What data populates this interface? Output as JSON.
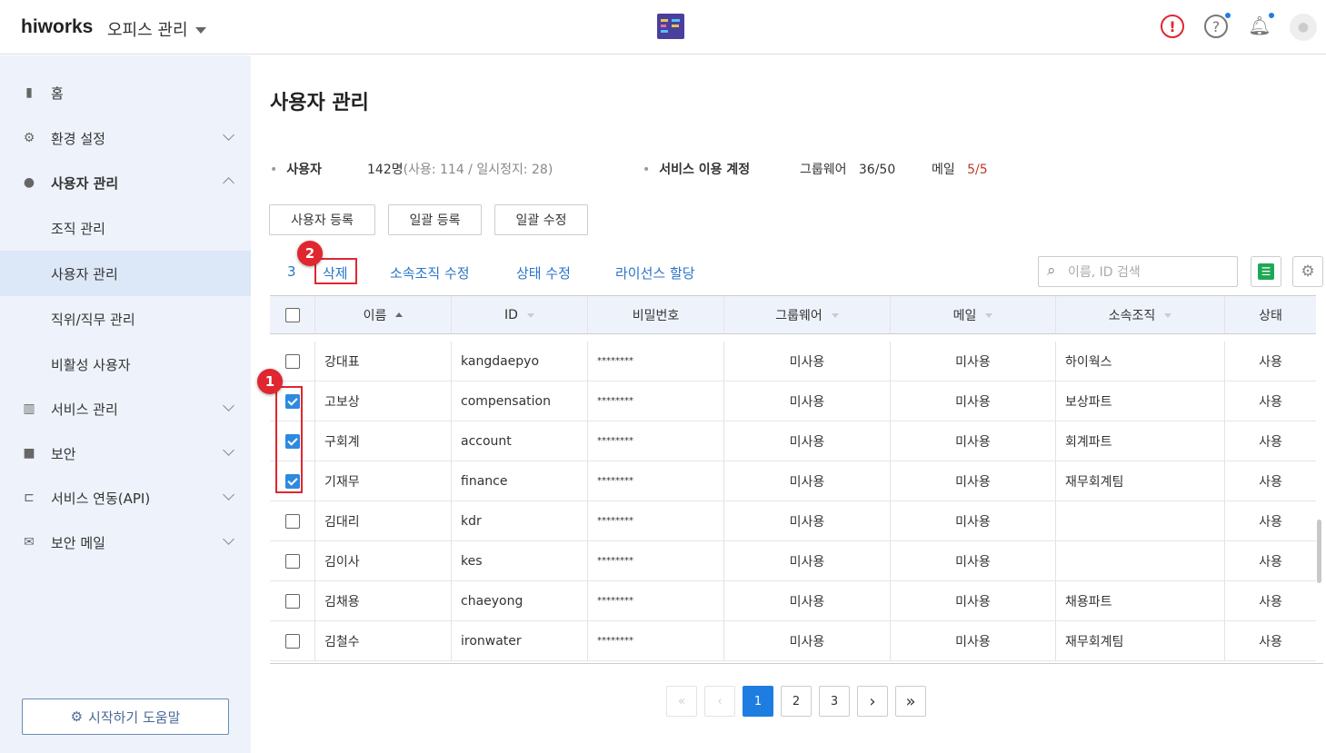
{
  "header": {
    "logo": "hiworks",
    "office_label": "오피스 관리",
    "icons": [
      "alert-icon",
      "help-icon",
      "bell-icon",
      "avatar"
    ],
    "accent": "#1e7de0"
  },
  "sidebar": {
    "items": [
      {
        "label": "홈",
        "icon": "building-icon"
      },
      {
        "label": "환경 설정",
        "icon": "gear-icon"
      },
      {
        "label": "사용자 관리",
        "icon": "user-icon"
      },
      {
        "label": "조직 관리"
      },
      {
        "label": "사용자 관리",
        "active": true
      },
      {
        "label": "직위/직무 관리"
      },
      {
        "label": "비활성 사용자"
      },
      {
        "label": "서비스 관리",
        "icon": "chart-icon"
      },
      {
        "label": "보안",
        "icon": "lock-icon"
      },
      {
        "label": "서비스 연동(API)",
        "icon": "api-icon"
      },
      {
        "label": "보안 메일",
        "icon": "mail-icon"
      }
    ],
    "help_button": "시작하기 도움말"
  },
  "main": {
    "title": "사용자 관리",
    "stats": {
      "users_label": "사용자",
      "users_total": "142명",
      "users_detail": "(사용: 114 / 일시정지: 28)",
      "service_label": "서비스 이용 계정",
      "groupware_label": "그룹웨어",
      "groupware_value": "36/50",
      "mail_label": "메일",
      "mail_value": "5/5"
    },
    "buttons": {
      "register": "사용자 등록",
      "bulk_register": "일괄 등록",
      "bulk_edit": "일괄 수정"
    },
    "actions": {
      "selected_count": "3",
      "delete": "삭제",
      "edit_org": "소속조직 수정",
      "edit_status": "상태 수정",
      "assign_license": "라이선스 할당"
    },
    "search_placeholder": "이름, ID 검색",
    "annotations": {
      "one": "1",
      "two": "2"
    },
    "columns": [
      "이름",
      "ID",
      "비밀번호",
      "그룹웨어",
      "메일",
      "소속조직",
      "상태"
    ],
    "rows": [
      {
        "checked": false,
        "name": "강대표",
        "id": "kangdaepyo",
        "pw": "********",
        "gw": "미사용",
        "mail": "미사용",
        "org": "하이웍스",
        "status": "사용"
      },
      {
        "checked": true,
        "name": "고보상",
        "id": "compensation",
        "pw": "********",
        "gw": "미사용",
        "mail": "미사용",
        "org": "보상파트",
        "status": "사용"
      },
      {
        "checked": true,
        "name": "구회계",
        "id": "account",
        "pw": "********",
        "gw": "미사용",
        "mail": "미사용",
        "org": "회계파트",
        "status": "사용"
      },
      {
        "checked": true,
        "name": "기재무",
        "id": "finance",
        "pw": "********",
        "gw": "미사용",
        "mail": "미사용",
        "org": "재무회계팀",
        "status": "사용"
      },
      {
        "checked": false,
        "name": "김대리",
        "id": "kdr",
        "pw": "********",
        "gw": "미사용",
        "mail": "미사용",
        "org": "",
        "status": "사용"
      },
      {
        "checked": false,
        "name": "김이사",
        "id": "kes",
        "pw": "********",
        "gw": "미사용",
        "mail": "미사용",
        "org": "",
        "status": "사용"
      },
      {
        "checked": false,
        "name": "김채용",
        "id": "chaeyong",
        "pw": "********",
        "gw": "미사용",
        "mail": "미사용",
        "org": "채용파트",
        "status": "사용"
      },
      {
        "checked": false,
        "name": "김철수",
        "id": "ironwater",
        "pw": "********",
        "gw": "미사용",
        "mail": "미사용",
        "org": "재무회계팀",
        "status": "사용"
      }
    ],
    "pagination": {
      "first": "«",
      "prev": "‹",
      "pages": [
        "1",
        "2",
        "3"
      ],
      "current": "1",
      "next": "›",
      "last": "»"
    }
  }
}
